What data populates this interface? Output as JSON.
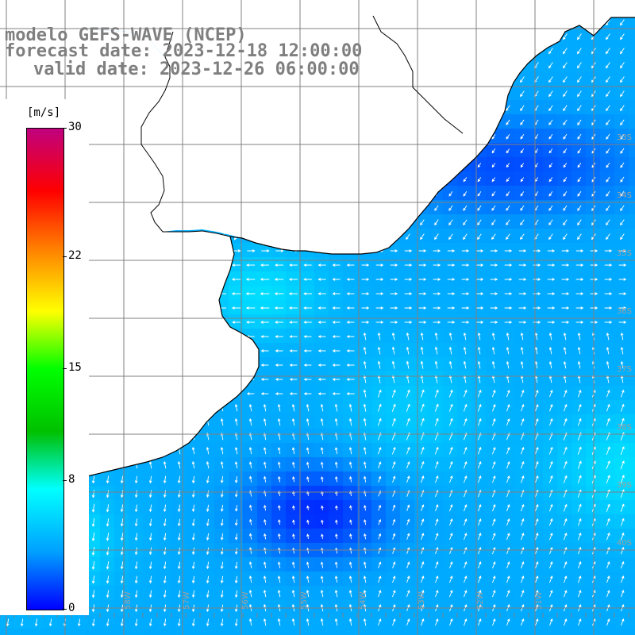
{
  "title": {
    "line1": "modelo GEFS-WAVE (NCEP)",
    "line2": "forecast date: 2023-12-18 12:00:00",
    "line3": "valid date: 2023-12-26 06:00:00"
  },
  "colorbar": {
    "unit": "[m/s]",
    "ticks": [
      "30",
      "22",
      "15",
      "8",
      "0"
    ],
    "tick_values": [
      30,
      22,
      15,
      8,
      0
    ],
    "min": 0,
    "max": 30,
    "colors": [
      "#0000ff",
      "#00a0ff",
      "#00ffff",
      "#00c000",
      "#00ff00",
      "#ffff00",
      "#ff8000",
      "#ff0000",
      "#c0007f"
    ]
  },
  "map": {
    "land_color": "#ffffff",
    "grid_color": "#808080",
    "coast_color": "#000000",
    "lat_labels": [
      "33S",
      "34S",
      "35S",
      "36S",
      "37S",
      "38S",
      "39S",
      "40S"
    ],
    "lon_labels": [
      "60W",
      "59W",
      "58W",
      "57W",
      "56W",
      "55W",
      "54W",
      "53W",
      "52W",
      "51W"
    ],
    "wind_speed_range_ms": [
      0,
      10
    ]
  }
}
